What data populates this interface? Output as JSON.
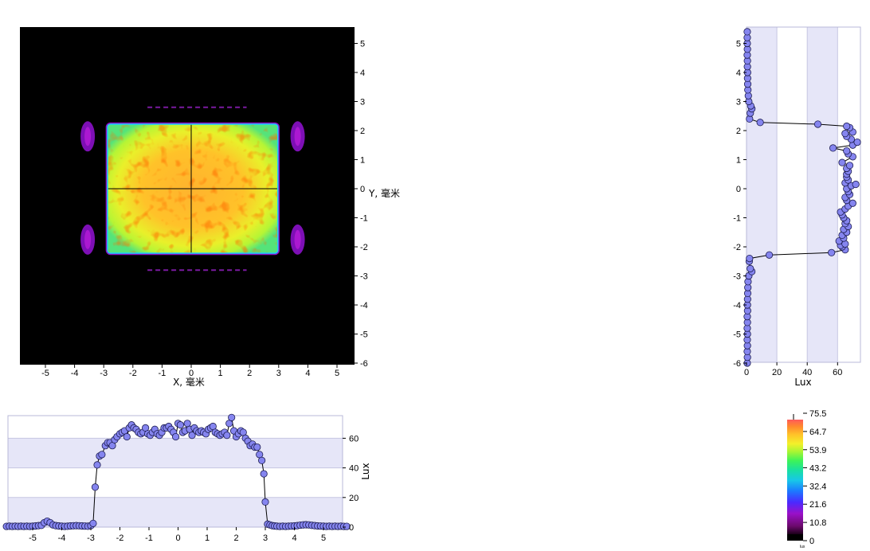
{
  "chart_data": [
    {
      "type": "heatmap",
      "name": "illuminance map",
      "xlabel": "X, 毫米",
      "ylabel": "Y, 毫米",
      "xlim": [
        -6,
        6
      ],
      "ylim": [
        -6,
        6
      ],
      "x_ticks": [
        "-5",
        "-4",
        "-3",
        "-2",
        "-1",
        "0",
        "1",
        "2",
        "3",
        "4",
        "5"
      ],
      "y_ticks": [
        "5",
        "4",
        "3",
        "2",
        "1",
        "0",
        "-1",
        "-2",
        "-3",
        "-4",
        "-5",
        "-6"
      ],
      "main_rect": {
        "x": [
          -2.85,
          2.95
        ],
        "y": [
          -2.2,
          2.2
        ]
      },
      "side_spots": [
        {
          "x": -3.55,
          "y": 1.8
        },
        {
          "x": 3.65,
          "y": 1.8
        },
        {
          "x": -3.55,
          "y": -1.75
        },
        {
          "x": 3.65,
          "y": -1.75
        }
      ],
      "faint_bands_y": [
        2.8,
        -2.8
      ],
      "crosshair": {
        "x": 0,
        "y": 0
      },
      "background": "#000000"
    },
    {
      "type": "line",
      "name": "vertical profile",
      "xlabel": "Lux",
      "ylabel": "",
      "xlim": [
        0,
        73
      ],
      "ylim": [
        -6,
        5.5
      ],
      "x_ticks": [
        "0",
        "20",
        "40",
        "60"
      ],
      "y_ticks": [
        "5",
        "4",
        "3",
        "2",
        "1",
        "0",
        "-1",
        "-2",
        "-3",
        "-4",
        "-5",
        "-6"
      ],
      "bands_lux": [
        [
          0,
          20
        ],
        [
          40,
          60
        ]
      ],
      "band_color": "#e6e6f8",
      "points": [
        [
          0.5,
          -6.0
        ],
        [
          0.6,
          -5.8
        ],
        [
          0.5,
          -5.6
        ],
        [
          0.6,
          -5.4
        ],
        [
          0.5,
          -5.2
        ],
        [
          0.6,
          -5.0
        ],
        [
          0.5,
          -4.8
        ],
        [
          0.6,
          -4.6
        ],
        [
          0.5,
          -4.4
        ],
        [
          0.7,
          -4.2
        ],
        [
          0.6,
          -4.0
        ],
        [
          0.7,
          -3.8
        ],
        [
          0.8,
          -3.6
        ],
        [
          0.9,
          -3.4
        ],
        [
          1.0,
          -3.2
        ],
        [
          1.5,
          -3.0
        ],
        [
          3.5,
          -2.85
        ],
        [
          2.5,
          -2.75
        ],
        [
          1.8,
          -2.5
        ],
        [
          2.0,
          -2.4
        ],
        [
          15,
          -2.28
        ],
        [
          56,
          -2.2
        ],
        [
          65,
          -2.1
        ],
        [
          63,
          -2.0
        ],
        [
          62,
          -1.95
        ],
        [
          65,
          -1.9
        ],
        [
          61,
          -1.8
        ],
        [
          64,
          -1.7
        ],
        [
          63,
          -1.6
        ],
        [
          66,
          -1.5
        ],
        [
          64,
          -1.4
        ],
        [
          67,
          -1.3
        ],
        [
          65,
          -1.2
        ],
        [
          66,
          -1.1
        ],
        [
          64,
          -1.0
        ],
        [
          63,
          -0.9
        ],
        [
          62,
          -0.8
        ],
        [
          65,
          -0.7
        ],
        [
          67,
          -0.6
        ],
        [
          70,
          -0.5
        ],
        [
          66,
          -0.4
        ],
        [
          65,
          -0.3
        ],
        [
          68,
          -0.2
        ],
        [
          67,
          -0.1
        ],
        [
          66,
          0.0
        ],
        [
          69,
          0.1
        ],
        [
          72,
          0.15
        ],
        [
          65,
          0.2
        ],
        [
          67,
          0.3
        ],
        [
          66,
          0.4
        ],
        [
          66,
          0.5
        ],
        [
          67,
          0.6
        ],
        [
          66,
          0.7
        ],
        [
          68,
          0.8
        ],
        [
          63,
          0.9
        ],
        [
          70,
          1.1
        ],
        [
          67,
          1.2
        ],
        [
          66,
          1.3
        ],
        [
          57,
          1.4
        ],
        [
          70,
          1.5
        ],
        [
          73,
          1.6
        ],
        [
          69,
          1.7
        ],
        [
          66,
          1.8
        ],
        [
          65,
          1.9
        ],
        [
          70,
          1.95
        ],
        [
          68,
          2.1
        ],
        [
          66,
          2.15
        ],
        [
          47,
          2.22
        ],
        [
          9,
          2.28
        ],
        [
          2.0,
          2.4
        ],
        [
          2.5,
          2.6
        ],
        [
          3.5,
          2.75
        ],
        [
          2.8,
          2.85
        ],
        [
          1.5,
          3.0
        ],
        [
          1.2,
          3.2
        ],
        [
          0.9,
          3.4
        ],
        [
          0.8,
          3.6
        ],
        [
          0.7,
          3.8
        ],
        [
          0.7,
          4.0
        ],
        [
          0.6,
          4.2
        ],
        [
          0.6,
          4.4
        ],
        [
          0.5,
          4.6
        ],
        [
          0.6,
          4.8
        ],
        [
          0.5,
          5.0
        ],
        [
          0.5,
          5.2
        ],
        [
          0.5,
          5.4
        ]
      ]
    },
    {
      "type": "line",
      "name": "horizontal profile",
      "xlabel": "",
      "ylabel": "Lux",
      "xlim": [
        -5.9,
        5.8
      ],
      "ylim": [
        0,
        75
      ],
      "x_ticks": [
        "-5",
        "-4",
        "-3",
        "-2",
        "-1",
        "0",
        "1",
        "2",
        "3",
        "4",
        "5"
      ],
      "y_ticks": [
        "0",
        "20",
        "40",
        "60"
      ],
      "bands_lux": [
        [
          0,
          20
        ],
        [
          40,
          60
        ]
      ],
      "band_color": "#e6e6f8",
      "points": [
        [
          -5.9,
          0.5
        ],
        [
          -5.8,
          0.6
        ],
        [
          -5.7,
          0.5
        ],
        [
          -5.6,
          0.6
        ],
        [
          -5.5,
          0.5
        ],
        [
          -5.4,
          0.6
        ],
        [
          -5.3,
          0.5
        ],
        [
          -5.2,
          0.6
        ],
        [
          -5.1,
          0.5
        ],
        [
          -5.0,
          0.6
        ],
        [
          -4.9,
          0.8
        ],
        [
          -4.8,
          1.0
        ],
        [
          -4.7,
          1.2
        ],
        [
          -4.6,
          3.0
        ],
        [
          -4.5,
          4.0
        ],
        [
          -4.4,
          3.0
        ],
        [
          -4.3,
          1.5
        ],
        [
          -4.2,
          1.0
        ],
        [
          -4.1,
          0.8
        ],
        [
          -4.0,
          0.6
        ],
        [
          -3.9,
          0.5
        ],
        [
          -3.8,
          0.6
        ],
        [
          -3.7,
          0.8
        ],
        [
          -3.6,
          0.9
        ],
        [
          -3.5,
          1.0
        ],
        [
          -3.4,
          0.9
        ],
        [
          -3.3,
          0.8
        ],
        [
          -3.2,
          0.7
        ],
        [
          -3.1,
          0.6
        ],
        [
          -3.0,
          1.0
        ],
        [
          -2.92,
          2.5
        ],
        [
          -2.85,
          27
        ],
        [
          -2.78,
          42
        ],
        [
          -2.7,
          48
        ],
        [
          -2.62,
          49
        ],
        [
          -2.5,
          55
        ],
        [
          -2.42,
          57
        ],
        [
          -2.34,
          57
        ],
        [
          -2.26,
          55
        ],
        [
          -2.18,
          59
        ],
        [
          -2.1,
          61
        ],
        [
          -2.0,
          63
        ],
        [
          -1.92,
          64
        ],
        [
          -1.84,
          65
        ],
        [
          -1.76,
          61
        ],
        [
          -1.68,
          67
        ],
        [
          -1.6,
          69
        ],
        [
          -1.52,
          67
        ],
        [
          -1.44,
          66
        ],
        [
          -1.36,
          64
        ],
        [
          -1.28,
          63
        ],
        [
          -1.2,
          64
        ],
        [
          -1.12,
          67
        ],
        [
          -1.04,
          63
        ],
        [
          -0.96,
          62
        ],
        [
          -0.88,
          64
        ],
        [
          -0.8,
          66
        ],
        [
          -0.72,
          63
        ],
        [
          -0.64,
          62
        ],
        [
          -0.56,
          64
        ],
        [
          -0.48,
          67
        ],
        [
          -0.4,
          67
        ],
        [
          -0.32,
          68
        ],
        [
          -0.24,
          66
        ],
        [
          -0.16,
          64
        ],
        [
          -0.08,
          61
        ],
        [
          0.0,
          70
        ],
        [
          0.08,
          69
        ],
        [
          0.16,
          64
        ],
        [
          0.24,
          65
        ],
        [
          0.32,
          70
        ],
        [
          0.4,
          66
        ],
        [
          0.48,
          62
        ],
        [
          0.56,
          67
        ],
        [
          0.64,
          65
        ],
        [
          0.72,
          64
        ],
        [
          0.8,
          65
        ],
        [
          0.88,
          64
        ],
        [
          0.96,
          63
        ],
        [
          1.04,
          66
        ],
        [
          1.12,
          67
        ],
        [
          1.2,
          68
        ],
        [
          1.28,
          64
        ],
        [
          1.36,
          63
        ],
        [
          1.44,
          62
        ],
        [
          1.52,
          63
        ],
        [
          1.6,
          64
        ],
        [
          1.68,
          62
        ],
        [
          1.76,
          70
        ],
        [
          1.84,
          74
        ],
        [
          1.92,
          65
        ],
        [
          2.0,
          61
        ],
        [
          2.08,
          63
        ],
        [
          2.16,
          65
        ],
        [
          2.24,
          64
        ],
        [
          2.32,
          60
        ],
        [
          2.4,
          58
        ],
        [
          2.48,
          55
        ],
        [
          2.56,
          56
        ],
        [
          2.64,
          54
        ],
        [
          2.72,
          54
        ],
        [
          2.8,
          49
        ],
        [
          2.88,
          45
        ],
        [
          2.95,
          36
        ],
        [
          3.0,
          17
        ],
        [
          3.08,
          2.0
        ],
        [
          3.16,
          1.5
        ],
        [
          3.24,
          1.0
        ],
        [
          3.32,
          0.8
        ],
        [
          3.4,
          0.6
        ],
        [
          3.5,
          0.5
        ],
        [
          3.6,
          0.6
        ],
        [
          3.7,
          0.5
        ],
        [
          3.8,
          0.6
        ],
        [
          3.9,
          0.7
        ],
        [
          4.0,
          0.8
        ],
        [
          4.1,
          1.0
        ],
        [
          4.2,
          1.3
        ],
        [
          4.3,
          1.5
        ],
        [
          4.4,
          1.6
        ],
        [
          4.5,
          1.5
        ],
        [
          4.6,
          1.2
        ],
        [
          4.7,
          1.0
        ],
        [
          4.8,
          0.8
        ],
        [
          4.9,
          0.7
        ],
        [
          5.0,
          0.6
        ],
        [
          5.1,
          0.5
        ],
        [
          5.2,
          0.6
        ],
        [
          5.3,
          0.5
        ],
        [
          5.4,
          0.6
        ],
        [
          5.5,
          0.5
        ],
        [
          5.6,
          0.6
        ],
        [
          5.7,
          0.5
        ],
        [
          5.8,
          0.5
        ]
      ]
    },
    {
      "type": "heatmap",
      "name": "color scale",
      "min": 0,
      "max": 75.5,
      "ticks": [
        "75.5",
        "64.7",
        "53.9",
        "43.2",
        "32.4",
        "21.6",
        "10.8",
        "0"
      ],
      "tiny_label": "lux"
    }
  ],
  "marker_color": "#8585ef",
  "marker_edge": "#1c1c50"
}
